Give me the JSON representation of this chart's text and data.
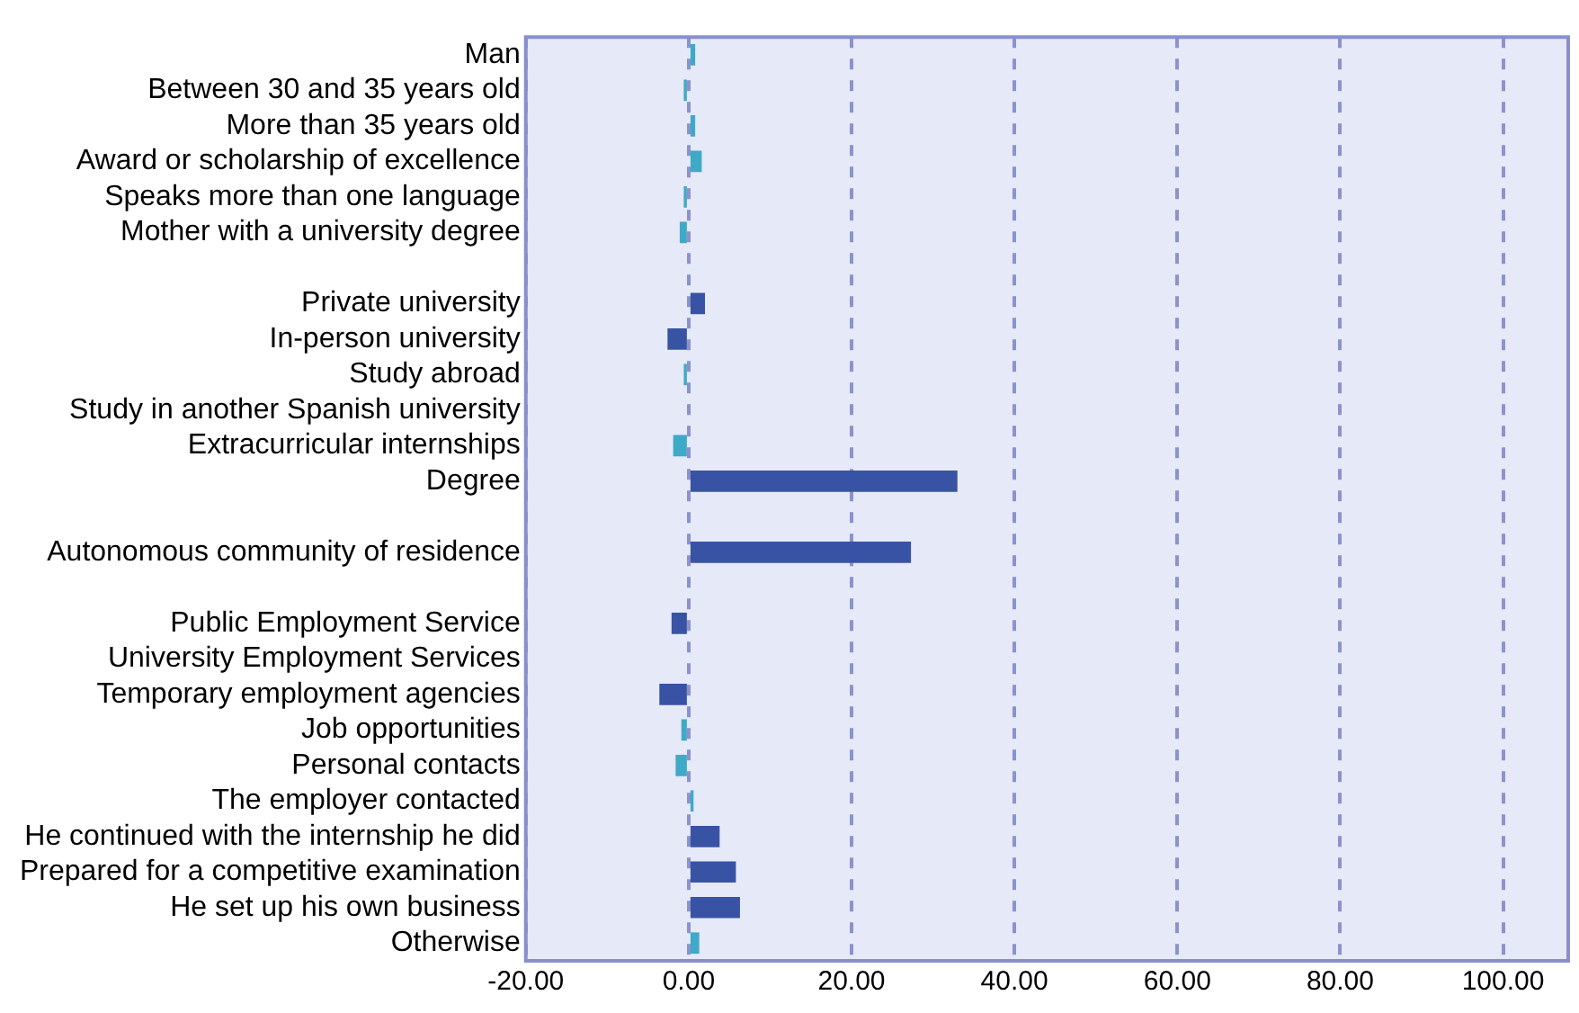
{
  "chart_data": {
    "type": "bar",
    "orientation": "horizontal",
    "categories": [
      "Man",
      "Between 30 and 35 years old",
      "More than 35 years old",
      "Award or scholarship of excellence",
      "Speaks more than one language",
      "Mother with a university degree",
      null,
      "Private university",
      "In-person university",
      "Study abroad",
      "Study in another Spanish university",
      "Extracurricular internships",
      "Degree",
      null,
      "Autonomous community of residence",
      null,
      "Public Employment Service",
      "University Employment Services",
      "Temporary employment agencies",
      "Job opportunities",
      "Personal contacts",
      "The employer contacted",
      "He continued with the internship he did",
      "Prepared for a competitive examination",
      "He set up his own business",
      "Otherwise"
    ],
    "values": [
      0.8,
      -0.6,
      0.8,
      1.6,
      -0.6,
      -1.1,
      null,
      2.0,
      -2.6,
      -0.6,
      0,
      -1.9,
      33.0,
      null,
      27.3,
      null,
      -2.1,
      0,
      -3.6,
      -0.9,
      -1.6,
      0.6,
      3.8,
      5.8,
      6.3,
      1.3
    ],
    "colors": [
      "#3fa9c8",
      "#3fa9c8",
      "#3fa9c8",
      "#3fa9c8",
      "#3fa9c8",
      "#3fa9c8",
      "#3fa9c8",
      "#3953a4",
      "#3953a4",
      "#3fa9c8",
      "#3fa9c8",
      "#3fa9c8",
      "#3953a4",
      "#3953a4",
      "#3953a4",
      "#3953a4",
      "#3953a4",
      "#3953a4",
      "#3953a4",
      "#3fa9c8",
      "#3fa9c8",
      "#3fa9c8",
      "#3953a4",
      "#3953a4",
      "#3953a4",
      "#3fa9c8"
    ],
    "xlim": [
      -20,
      108
    ],
    "xticks": [
      {
        "value": -20,
        "label": "-20.00"
      },
      {
        "value": 0,
        "label": "0.00"
      },
      {
        "value": 20,
        "label": "20.00"
      },
      {
        "value": 40,
        "label": "40.00"
      },
      {
        "value": 60,
        "label": "60.00"
      },
      {
        "value": 80,
        "label": "80.00"
      },
      {
        "value": 100,
        "label": "100.00"
      }
    ],
    "grid": "x",
    "legend": false
  }
}
